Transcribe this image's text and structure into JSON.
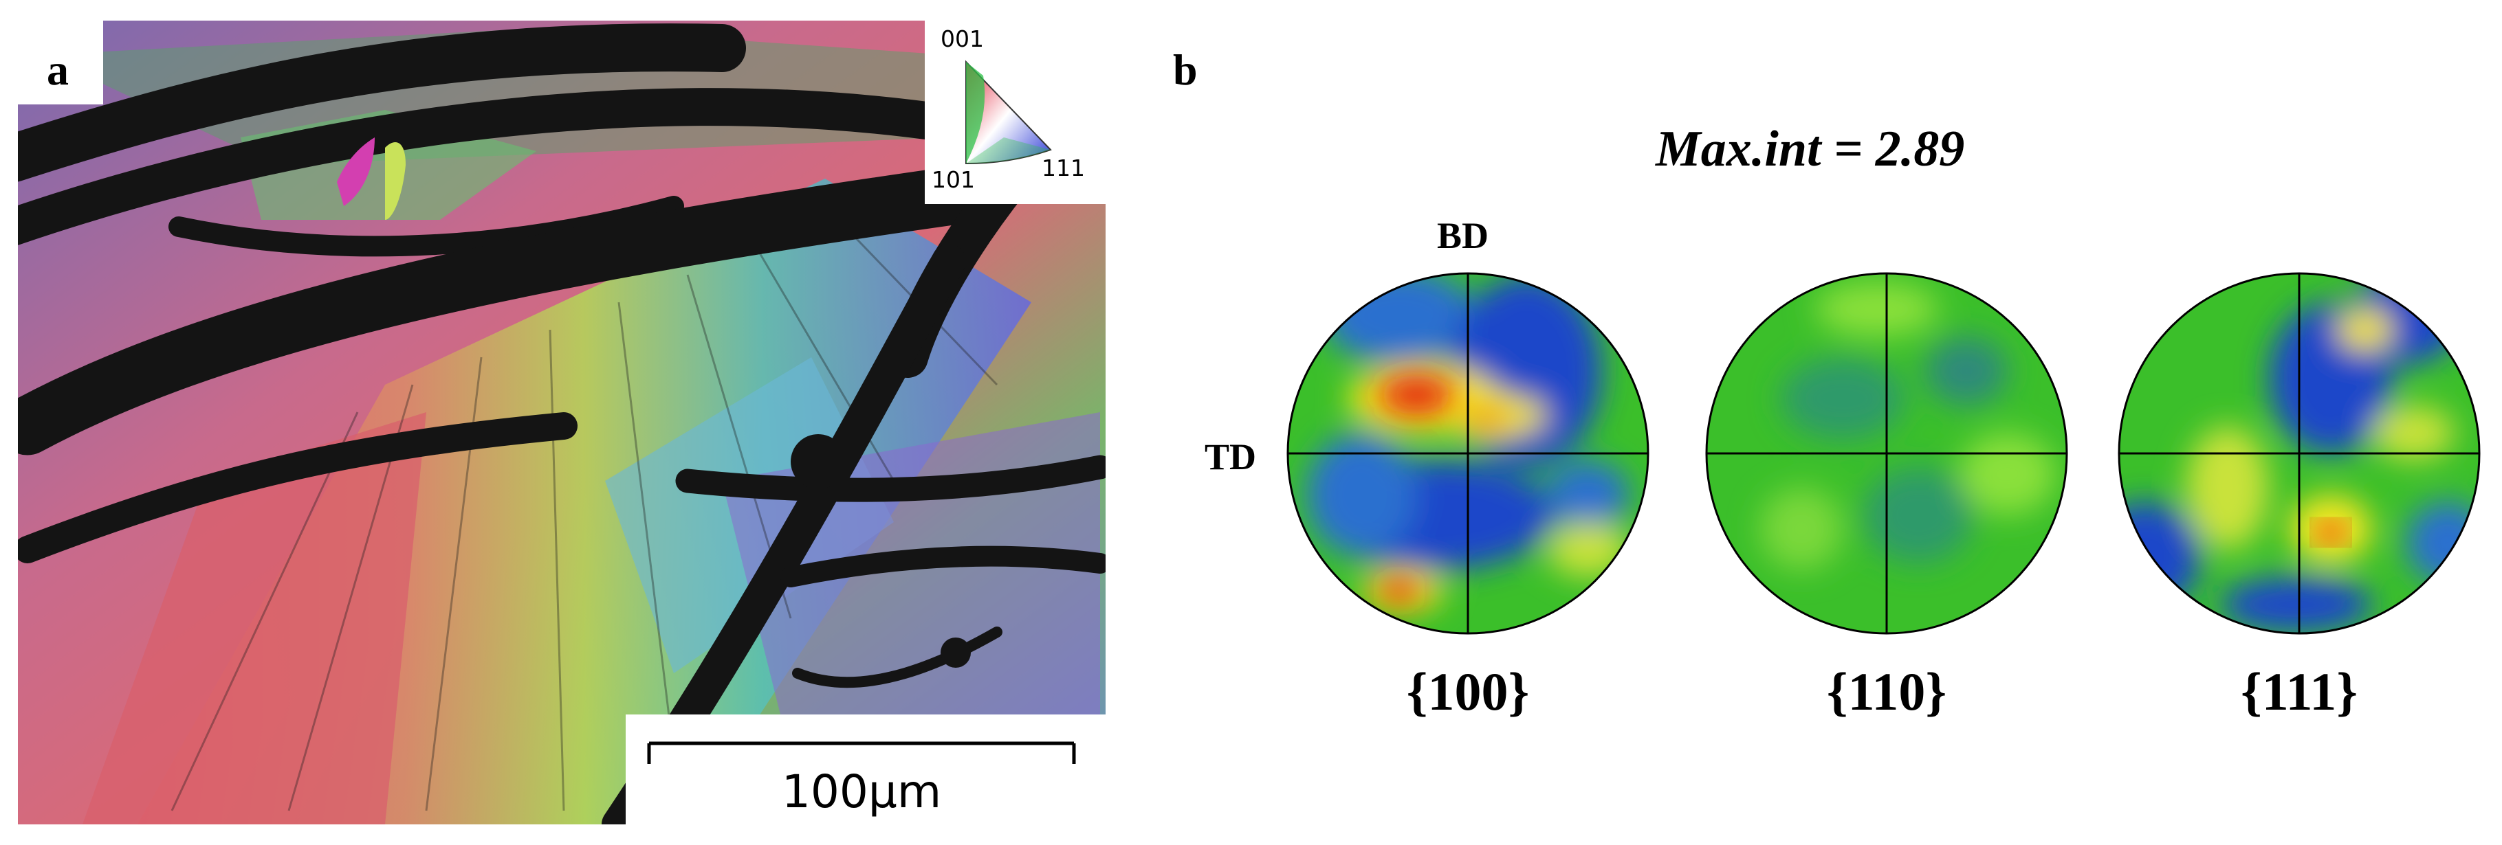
{
  "panel_a": {
    "label": "a",
    "scale_bar": {
      "text": "100μm"
    },
    "ipf_key": {
      "corner_top": "001",
      "corner_left": "101",
      "corner_right": "111"
    }
  },
  "panel_b": {
    "label": "b",
    "max_intensity": "Max.int = 2.89",
    "axis_bd": "BD",
    "axis_td": "TD",
    "pole_figures": [
      {
        "label": "{100}"
      },
      {
        "label": "{110}"
      },
      {
        "label": "{111}"
      }
    ]
  },
  "colors": {
    "pf_low": "#1a47c9",
    "pf_mid": "#3bbf2a",
    "pf_high": "#f5e623",
    "pf_max": "#e3200f",
    "ipf_001": "#e3263c",
    "ipf_101": "#2fc24a",
    "ipf_111": "#2f3dd6"
  }
}
